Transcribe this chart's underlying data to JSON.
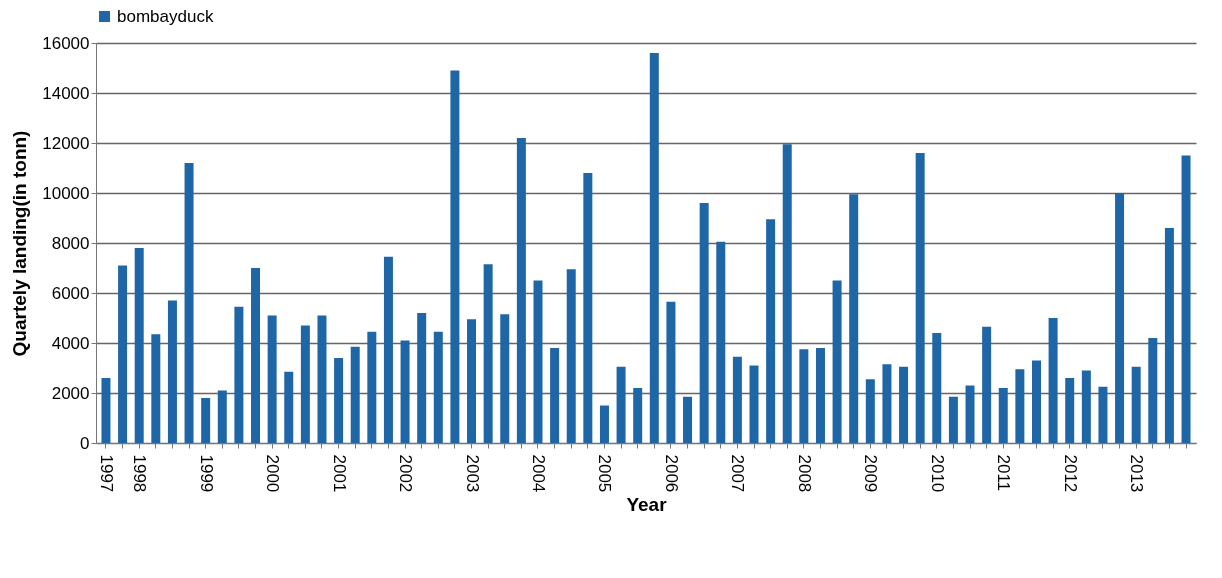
{
  "chart_data": {
    "type": "bar",
    "xlabel": "Year",
    "ylabel": "Quartely landing(in tonn)",
    "categories": [
      "1997",
      null,
      "1998",
      null,
      null,
      null,
      "1999",
      null,
      null,
      null,
      "2000",
      null,
      null,
      null,
      "2001",
      null,
      null,
      null,
      "2002",
      null,
      null,
      null,
      "2003",
      null,
      null,
      null,
      "2004",
      null,
      null,
      null,
      "2005",
      null,
      null,
      null,
      "2006",
      null,
      null,
      null,
      "2007",
      null,
      null,
      null,
      "2008",
      null,
      null,
      null,
      "2009",
      null,
      null,
      null,
      "2010",
      null,
      null,
      null,
      "2011",
      null,
      null,
      null,
      "2012",
      null,
      null,
      null,
      "2013",
      null,
      null,
      null
    ],
    "series": [
      {
        "name": "bombayduck",
        "color": "#1f66a6",
        "values": [
          2600,
          7100,
          7800,
          4350,
          5700,
          11200,
          1800,
          2100,
          5450,
          7000,
          5100,
          2850,
          4700,
          5100,
          3400,
          3850,
          4450,
          7450,
          4100,
          5200,
          4450,
          14900,
          4950,
          7150,
          5150,
          12200,
          6500,
          3800,
          6950,
          10800,
          1500,
          3050,
          2200,
          15600,
          5650,
          1850,
          9600,
          8050,
          3450,
          3100,
          8950,
          11950,
          3750,
          3800,
          6500,
          9950,
          2550,
          3150,
          3050,
          11600,
          4400,
          1850,
          2300,
          4650,
          2200,
          2950,
          3300,
          5000,
          2600,
          2900,
          2250,
          10000,
          3050,
          4200,
          8600,
          11500
        ]
      }
    ],
    "ylim": [
      0,
      16000
    ],
    "yticks": [
      0,
      2000,
      4000,
      6000,
      8000,
      10000,
      12000,
      14000,
      16000
    ],
    "grid": "y",
    "legend": "top"
  }
}
